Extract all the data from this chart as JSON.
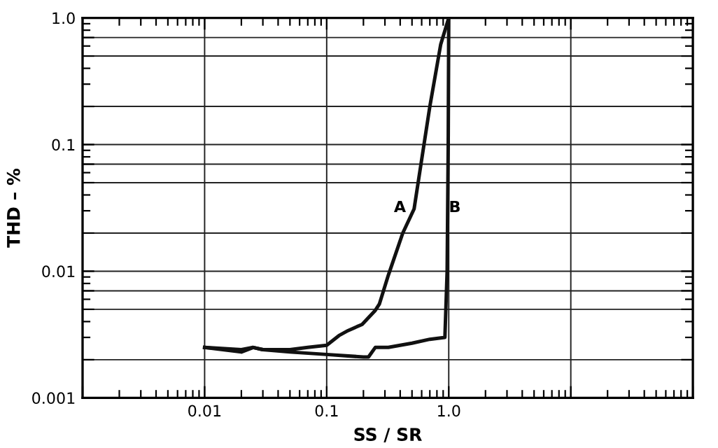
{
  "chart_data": {
    "type": "line",
    "xlabel": "SS / SR",
    "ylabel": "THD – %",
    "log": "xy",
    "grid": true,
    "marker": "none",
    "line_style": "solid",
    "xlim": [
      0.001,
      100
    ],
    "ylim": [
      0.001,
      1.0
    ],
    "xticks": [
      {
        "value": 0.001,
        "label": null
      },
      0.01,
      0.1,
      {
        "value": 1.0,
        "label": "1.0"
      },
      {
        "value": 10,
        "label": null
      },
      {
        "value": 100,
        "label": null
      }
    ],
    "yticks": [
      0.001,
      {
        "value": 0.002,
        "label": null
      },
      {
        "value": 0.005,
        "label": null
      },
      {
        "value": 0.007,
        "label": null
      },
      0.01,
      {
        "value": 0.02,
        "label": null
      },
      {
        "value": 0.05,
        "label": null
      },
      {
        "value": 0.07,
        "label": null
      },
      0.1,
      {
        "value": 0.2,
        "label": null
      },
      {
        "value": 0.5,
        "label": null
      },
      {
        "value": 0.7,
        "label": null
      },
      {
        "value": 1.0,
        "label": "1.0"
      }
    ],
    "series": [
      {
        "color": "#111111",
        "x": [
          0.01,
          0.02,
          0.025,
          0.03,
          0.05,
          0.07,
          0.1,
          0.126,
          0.15,
          0.195,
          0.25,
          0.27,
          0.32,
          0.42,
          0.52,
          0.7,
          0.86,
          1.0
        ],
        "values": [
          0.0025,
          0.0024,
          0.0025,
          0.0024,
          0.0024,
          0.0025,
          0.0026,
          0.0031,
          0.0034,
          0.0038,
          0.0049,
          0.0055,
          0.0093,
          0.02,
          0.031,
          0.2,
          0.62,
          1.0
        ]
      },
      {
        "color": "#111111",
        "x": [
          0.01,
          0.02,
          0.025,
          0.03,
          0.05,
          0.1,
          0.2,
          0.22,
          0.25,
          0.32,
          0.5,
          0.7,
          0.93,
          0.97,
          0.99,
          1.0
        ],
        "values": [
          0.0025,
          0.0023,
          0.0025,
          0.0024,
          0.0023,
          0.0022,
          0.0021,
          0.0021,
          0.0025,
          0.0025,
          0.0027,
          0.0029,
          0.003,
          0.01,
          0.1,
          1.0
        ]
      }
    ],
    "annotations": [
      "A",
      "B"
    ]
  }
}
